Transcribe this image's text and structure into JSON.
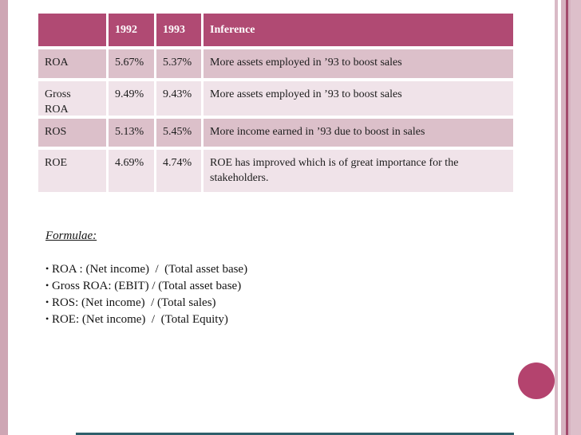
{
  "slide": {
    "table": {
      "columns": [
        "",
        "1992",
        "1993",
        "Inference"
      ],
      "rows": [
        {
          "metric": "ROA",
          "v1992": "5.67%",
          "v1993": "5.37%",
          "inference": "More assets employed in ’93 to boost sales"
        },
        {
          "metric": "Gross ROA",
          "v1992": "9.49%",
          "v1993": "9.43%",
          "inference": "More assets employed in ’93 to boost sales"
        },
        {
          "metric": "ROS",
          "v1992": "5.13%",
          "v1993": "5.45%",
          "inference": "More income earned in ’93 due to boost in sales"
        },
        {
          "metric": "ROE",
          "v1992": "4.69%",
          "v1993": "4.74%",
          "inference": "ROE has improved which is of great importance for the stakeholders."
        }
      ]
    },
    "formulae": {
      "heading": "Formulae:",
      "items": [
        "ROA : (Net income)  /  (Total asset base)",
        "Gross ROA: (EBIT) / (Total asset base)",
        "ROS: (Net income)  / (Total sales)",
        "ROE: (Net income)  /  (Total Equity)"
      ]
    },
    "colors": {
      "accent": "#b04a73",
      "row_dark": "#dcc0ca",
      "row_light": "#f0e3e9",
      "side_stripe": "#cea6b4",
      "bottom_bar": "#2e5f6b"
    }
  }
}
